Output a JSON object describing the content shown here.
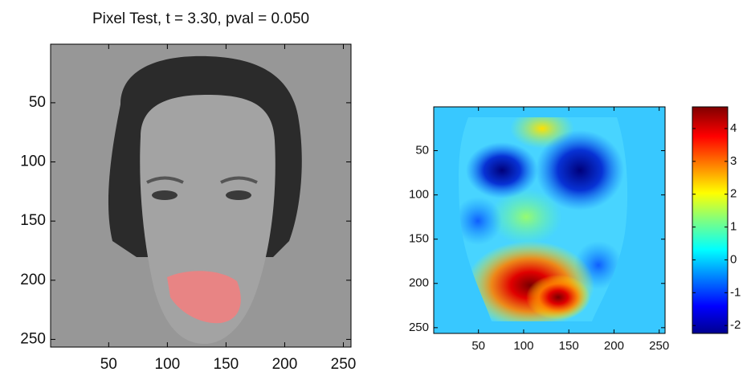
{
  "chart_data": [
    {
      "type": "image",
      "title": "Pixel Test, t = 3.30, pval = 0.050",
      "xlim": [
        0.5,
        256.5
      ],
      "ylim": [
        0.5,
        256.5
      ],
      "y_reversed": true,
      "xticks": [
        50,
        100,
        150,
        200,
        250
      ],
      "yticks": [
        50,
        100,
        150,
        200,
        250
      ]
    },
    {
      "type": "heatmap",
      "xlim": [
        0.5,
        256.5
      ],
      "ylim": [
        0.5,
        256.5
      ],
      "y_reversed": true,
      "xticks": [
        50,
        100,
        150,
        200,
        250
      ],
      "yticks": [
        50,
        100,
        150,
        200,
        250
      ],
      "colorbar": {
        "clim": [
          -2.24,
          4.66
        ],
        "ticks": [
          -2,
          -1,
          0,
          1,
          2,
          3,
          4
        ],
        "colormap": "jet"
      }
    }
  ]
}
